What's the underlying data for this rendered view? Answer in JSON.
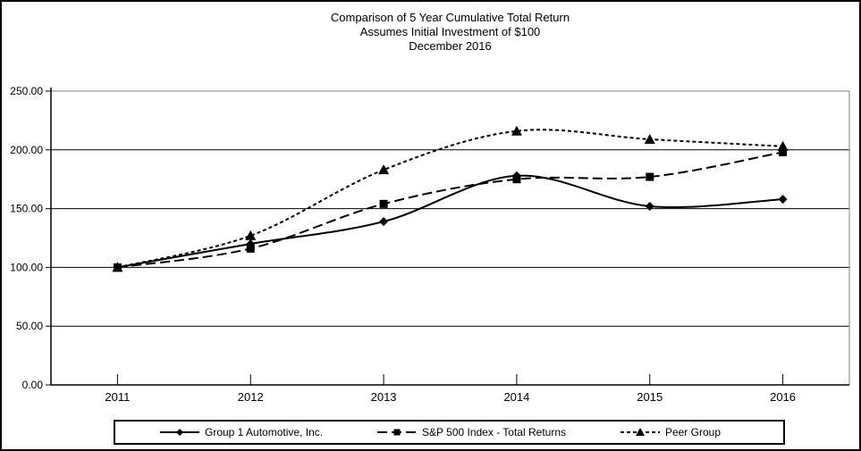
{
  "colors": {
    "series": "#000000",
    "background": "#ffffff",
    "plot_border_gray": "#808080",
    "gridline": "#000000"
  },
  "chart_data": {
    "type": "line",
    "title_lines": [
      "Comparison of 5 Year Cumulative Total Return",
      "Assumes Initial Investment of $100",
      "December 2016"
    ],
    "categories": [
      "2011",
      "2012",
      "2013",
      "2014",
      "2015",
      "2016"
    ],
    "series": [
      {
        "name": "Group 1 Automotive, Inc.",
        "values": [
          100.0,
          120.0,
          139.0,
          178.0,
          152.0,
          158.0
        ],
        "marker": "diamond-marker-icon",
        "line_style": "solid"
      },
      {
        "name": "S&P 500 Index - Total Returns",
        "values": [
          100.0,
          116.0,
          154.0,
          175.0,
          177.0,
          198.0
        ],
        "marker": "square-marker-icon",
        "line_style": "long-dash"
      },
      {
        "name": "Peer Group",
        "values": [
          100.0,
          127.0,
          183.0,
          216.0,
          209.0,
          203.0
        ],
        "marker": "triangle-marker-icon",
        "line_style": "short-dash"
      }
    ],
    "ylim": [
      0,
      250
    ],
    "ytick_step": 50,
    "ytick_labels": [
      "0.00",
      "50.00",
      "100.00",
      "150.00",
      "200.00",
      "250.00"
    ],
    "grid": "horizontal-only",
    "legend_position": "bottom"
  }
}
